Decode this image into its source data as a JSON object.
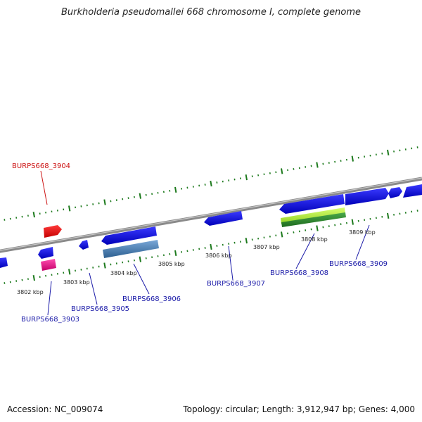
{
  "title": "Burkholderia pseudomallei 668 chromosome I, complete genome",
  "accession_text": "Accession: NC_009074",
  "topology_text": "Topology: circular; Length: 3,912,947 bp; Genes: 4,000",
  "colors": {
    "backbone": "#888888",
    "tick": "#1d7a1d",
    "gene_blue": "#1010e0",
    "gene_red": "#ee1111",
    "gene_magenta": "#ee1a90",
    "gene_steel": "#4f86b8",
    "gene_green": "#2f8f2f",
    "gene_lightgreen": "#b8f040",
    "label_blue": "#1a1aa8",
    "label_red": "#cc1111"
  },
  "ticks": [
    {
      "label": "3802 kbp"
    },
    {
      "label": "3803 kbp"
    },
    {
      "label": "3804 kbp"
    },
    {
      "label": "3805 kbp"
    },
    {
      "label": "3806 kbp"
    },
    {
      "label": "3807 kbp"
    },
    {
      "label": "3808 kbp"
    },
    {
      "label": "3809 kbp"
    }
  ],
  "genes": [
    {
      "label": "BURPS668_3903",
      "color": "label_blue"
    },
    {
      "label": "BURPS668_3904",
      "color": "label_red"
    },
    {
      "label": "BURPS668_3905",
      "color": "label_blue"
    },
    {
      "label": "BURPS668_3906",
      "color": "label_blue"
    },
    {
      "label": "BURPS668_3907",
      "color": "label_blue"
    },
    {
      "label": "BURPS668_3908",
      "color": "label_blue"
    },
    {
      "label": "BURPS668_3909",
      "color": "label_blue"
    }
  ]
}
